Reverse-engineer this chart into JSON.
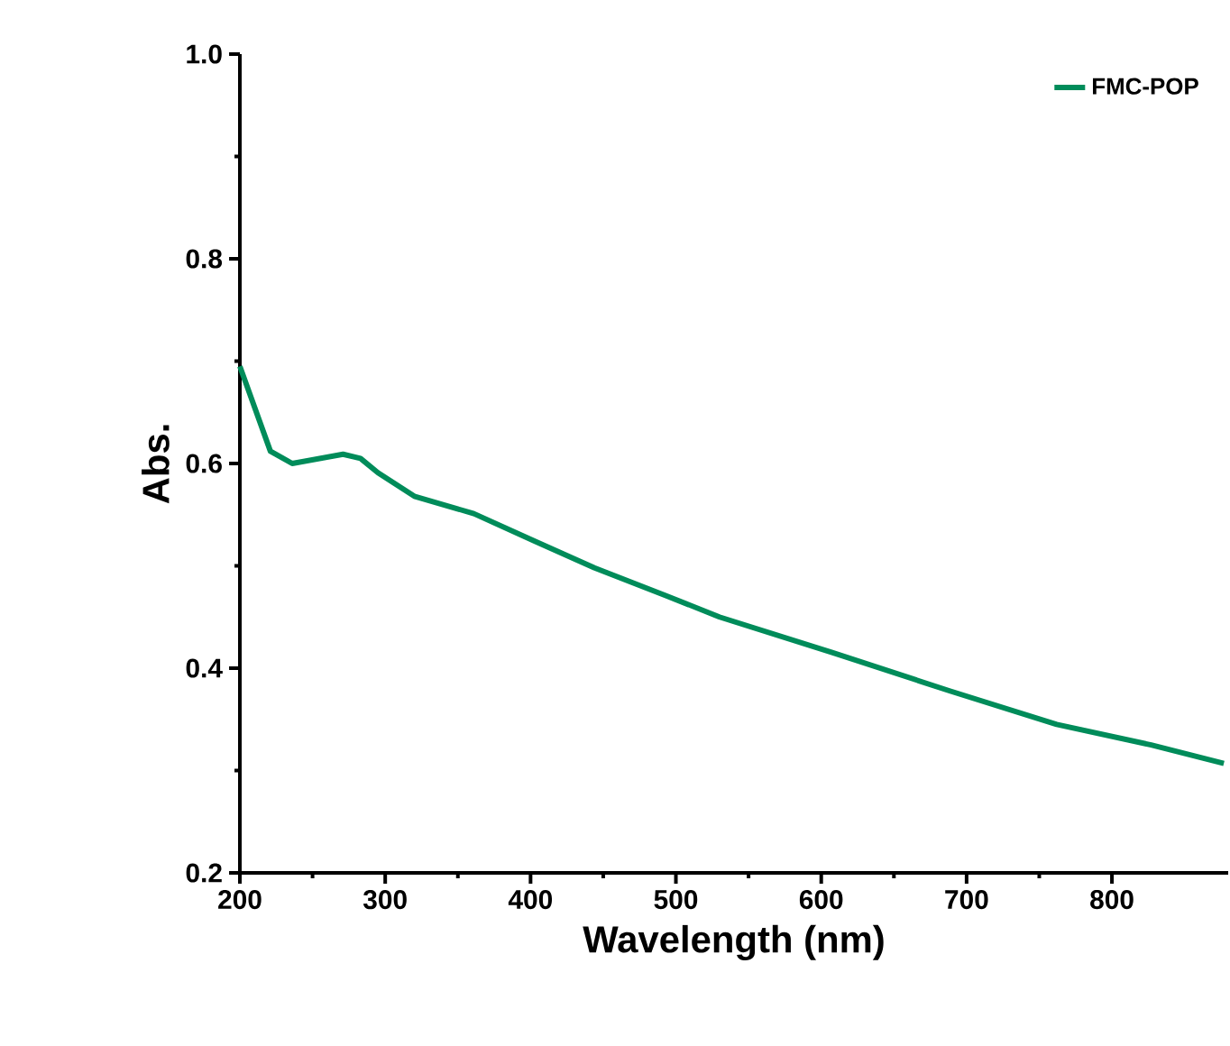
{
  "chart_data": {
    "type": "line",
    "xlabel": "Wavelength (nm)",
    "ylabel": "Abs.",
    "xlim": [
      200,
      880
    ],
    "ylim": [
      0.2,
      1.0
    ],
    "xticks": [
      200,
      300,
      400,
      500,
      600,
      700,
      800
    ],
    "yticks": [
      0.2,
      0.4,
      0.6,
      0.8,
      {
        "value": 1.0,
        "label": "1.0"
      }
    ],
    "legend": "top right",
    "marker": "none",
    "line_style": "solid",
    "series": [
      {
        "name": "FMC-POP",
        "color": "#008c5a",
        "x": [
          200,
          221,
          236,
          271,
          283,
          295,
          320,
          361,
          403,
          444,
          493,
          530,
          608,
          688,
          762,
          827,
          877
        ],
        "values": [
          0.695,
          0.612,
          0.6,
          0.609,
          0.605,
          0.591,
          0.568,
          0.551,
          0.524,
          0.498,
          0.471,
          0.45,
          0.415,
          0.378,
          0.345,
          0.325,
          0.307
        ]
      }
    ]
  }
}
